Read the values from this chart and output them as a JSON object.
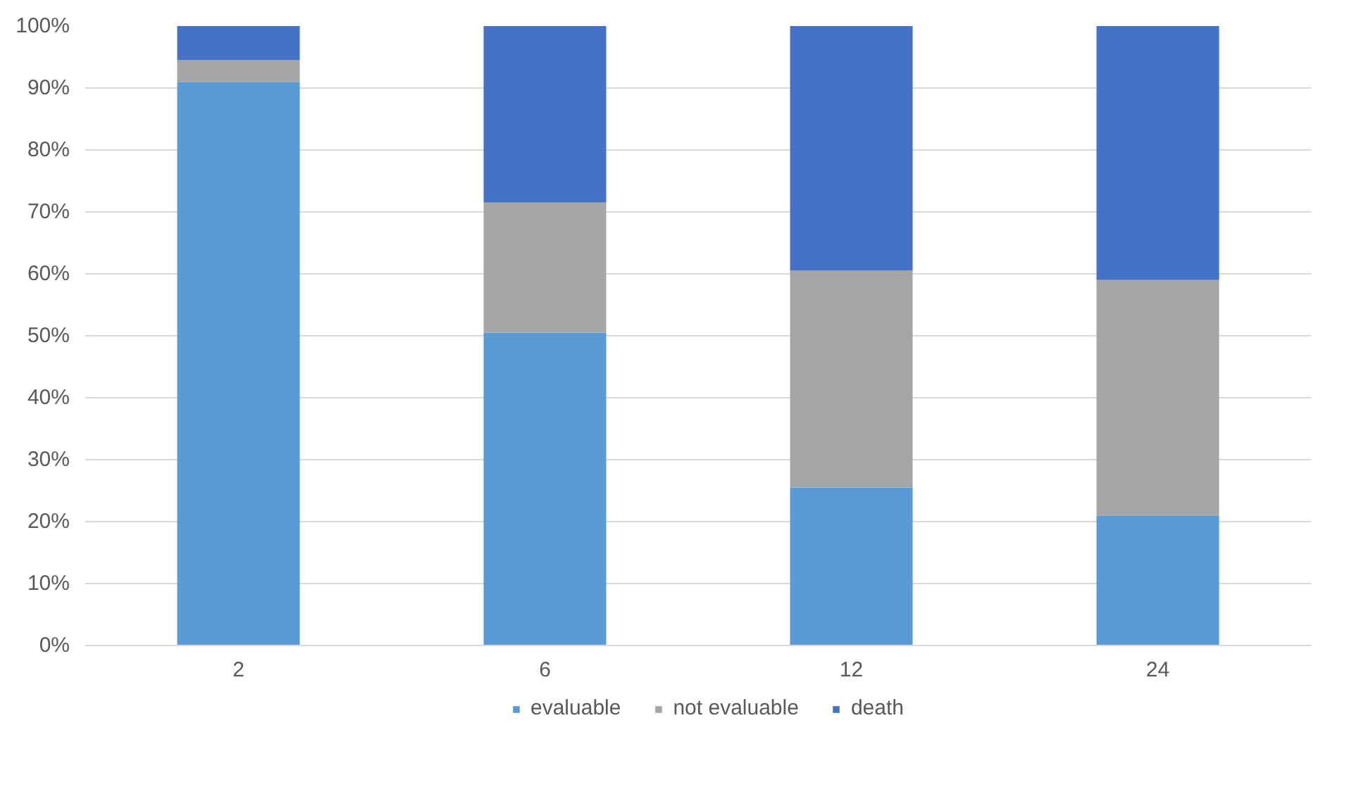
{
  "chart_data": {
    "type": "bar",
    "stacked": true,
    "categories": [
      "2",
      "6",
      "12",
      "24"
    ],
    "series": [
      {
        "name": "evaluable",
        "color": "#5b9bd5",
        "values": [
          91,
          50.5,
          25.5,
          21
        ]
      },
      {
        "name": "not evaluable",
        "color": "#a5a5a5",
        "values": [
          3.5,
          21,
          35,
          38
        ]
      },
      {
        "name": "death",
        "color": "#4472c4",
        "values": [
          5.5,
          28.5,
          39.5,
          41
        ]
      }
    ],
    "ylim": [
      0,
      100
    ],
    "yticks": [
      {
        "value": 0,
        "label": "0%"
      },
      {
        "value": 10,
        "label": "10%"
      },
      {
        "value": 20,
        "label": "20%"
      },
      {
        "value": 30,
        "label": "30%"
      },
      {
        "value": 40,
        "label": "40%"
      },
      {
        "value": 50,
        "label": "50%"
      },
      {
        "value": 60,
        "label": "60%"
      },
      {
        "value": 70,
        "label": "70%"
      },
      {
        "value": 80,
        "label": "80%"
      },
      {
        "value": 90,
        "label": "90%"
      },
      {
        "value": 100,
        "label": "100%"
      }
    ],
    "grid": "y",
    "legend": "bottom"
  }
}
